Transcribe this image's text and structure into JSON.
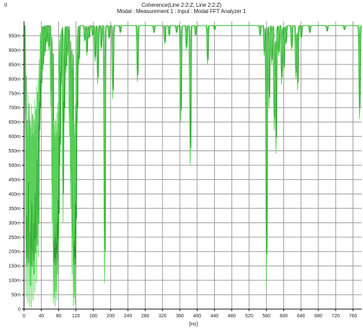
{
  "window": {
    "corner_label": "II"
  },
  "chart_data": {
    "type": "line",
    "title": "Coherence(Line 2:2:Z, Line 2:2:Z)",
    "subtitle": "Modal : Measurement 1 : Input : Modal FFT Analyzer 1",
    "xlabel": "[Hz]",
    "ylabel": "",
    "xlim": [
      0,
      780
    ],
    "ylim": [
      0,
      1000
    ],
    "grid": true,
    "x_ticks": [
      0,
      40,
      80,
      120,
      160,
      200,
      240,
      280,
      320,
      360,
      400,
      440,
      480,
      520,
      560,
      600,
      640,
      680,
      720,
      760
    ],
    "x_tick_labels": [
      "0",
      "40",
      "80",
      "120",
      "160",
      "200",
      "240",
      "280",
      "320",
      "360",
      "400",
      "440",
      "480",
      "520",
      "560",
      "600",
      "640",
      "680",
      "720",
      "760"
    ],
    "y_ticks": [
      0,
      50,
      100,
      150,
      200,
      250,
      300,
      350,
      400,
      450,
      500,
      550,
      600,
      650,
      700,
      750,
      800,
      850,
      900,
      950
    ],
    "y_tick_labels": [
      "0",
      "50m",
      "100m",
      "150m",
      "200m",
      "250m",
      "300m",
      "350m",
      "400m",
      "450m",
      "500m",
      "550m",
      "600m",
      "650m",
      "700m",
      "750m",
      "800m",
      "850m",
      "900m",
      "950m"
    ],
    "colors": {
      "series_light": "#5ed85e",
      "series_dark": "#1e8f1e",
      "grid": "#a0a0a0",
      "axis": "#000000"
    },
    "dips": [
      {
        "f": 3,
        "min": 620
      },
      {
        "f": 5,
        "min": 40
      },
      {
        "f": 7,
        "min": 150
      },
      {
        "f": 9,
        "min": 20
      },
      {
        "f": 11,
        "min": 300
      },
      {
        "f": 13,
        "min": 10
      },
      {
        "f": 15,
        "min": 80
      },
      {
        "f": 17,
        "min": 5
      },
      {
        "f": 19,
        "min": 200
      },
      {
        "f": 21,
        "min": 30
      },
      {
        "f": 23,
        "min": 120
      },
      {
        "f": 25,
        "min": 60
      },
      {
        "f": 27,
        "min": 250
      },
      {
        "f": 29,
        "min": 90
      },
      {
        "f": 31,
        "min": 400
      },
      {
        "f": 33,
        "min": 180
      },
      {
        "f": 35,
        "min": 560
      },
      {
        "f": 37,
        "min": 650
      },
      {
        "f": 40,
        "min": 750
      },
      {
        "f": 44,
        "min": 830
      },
      {
        "f": 48,
        "min": 880
      },
      {
        "f": 52,
        "min": 920
      },
      {
        "f": 57,
        "min": 900
      },
      {
        "f": 62,
        "min": 700
      },
      {
        "f": 65,
        "min": 300
      },
      {
        "f": 68,
        "min": 20
      },
      {
        "f": 70,
        "min": 40
      },
      {
        "f": 72,
        "min": 10
      },
      {
        "f": 74,
        "min": 60
      },
      {
        "f": 76,
        "min": 30
      },
      {
        "f": 78,
        "min": 120
      },
      {
        "f": 80,
        "min": 220
      },
      {
        "f": 83,
        "min": 500
      },
      {
        "f": 86,
        "min": 780
      },
      {
        "f": 90,
        "min": 300
      },
      {
        "f": 93,
        "min": 650
      },
      {
        "f": 97,
        "min": 820
      },
      {
        "f": 101,
        "min": 880
      },
      {
        "f": 105,
        "min": 600
      },
      {
        "f": 108,
        "min": 350
      },
      {
        "f": 111,
        "min": 120
      },
      {
        "f": 114,
        "min": 10
      },
      {
        "f": 116,
        "min": 40
      },
      {
        "f": 118,
        "min": 15
      },
      {
        "f": 120,
        "min": 200
      },
      {
        "f": 123,
        "min": 650
      },
      {
        "f": 127,
        "min": 850
      },
      {
        "f": 140,
        "min": 930
      },
      {
        "f": 145,
        "min": 880
      },
      {
        "f": 150,
        "min": 940
      },
      {
        "f": 158,
        "min": 950
      },
      {
        "f": 164,
        "min": 860
      },
      {
        "f": 170,
        "min": 780
      },
      {
        "f": 178,
        "min": 900
      },
      {
        "f": 186,
        "min": 90
      },
      {
        "f": 196,
        "min": 940
      },
      {
        "f": 205,
        "min": 730
      },
      {
        "f": 222,
        "min": 960
      },
      {
        "f": 262,
        "min": 790
      },
      {
        "f": 300,
        "min": 960
      },
      {
        "f": 325,
        "min": 920
      },
      {
        "f": 335,
        "min": 950
      },
      {
        "f": 352,
        "min": 960
      },
      {
        "f": 362,
        "min": 650
      },
      {
        "f": 375,
        "min": 900
      },
      {
        "f": 384,
        "min": 500
      },
      {
        "f": 396,
        "min": 950
      },
      {
        "f": 424,
        "min": 850
      },
      {
        "f": 440,
        "min": 970
      },
      {
        "f": 545,
        "min": 950
      },
      {
        "f": 555,
        "min": 880
      },
      {
        "f": 560,
        "min": 80
      },
      {
        "f": 566,
        "min": 700
      },
      {
        "f": 572,
        "min": 850
      },
      {
        "f": 578,
        "min": 620
      },
      {
        "f": 582,
        "min": 540
      },
      {
        "f": 588,
        "min": 880
      },
      {
        "f": 595,
        "min": 780
      },
      {
        "f": 600,
        "min": 820
      },
      {
        "f": 605,
        "min": 920
      },
      {
        "f": 618,
        "min": 900
      },
      {
        "f": 628,
        "min": 800
      },
      {
        "f": 632,
        "min": 760
      },
      {
        "f": 640,
        "min": 940
      },
      {
        "f": 660,
        "min": 960
      },
      {
        "f": 700,
        "min": 965
      },
      {
        "f": 740,
        "min": 970
      },
      {
        "f": 775,
        "min": 660
      }
    ]
  }
}
